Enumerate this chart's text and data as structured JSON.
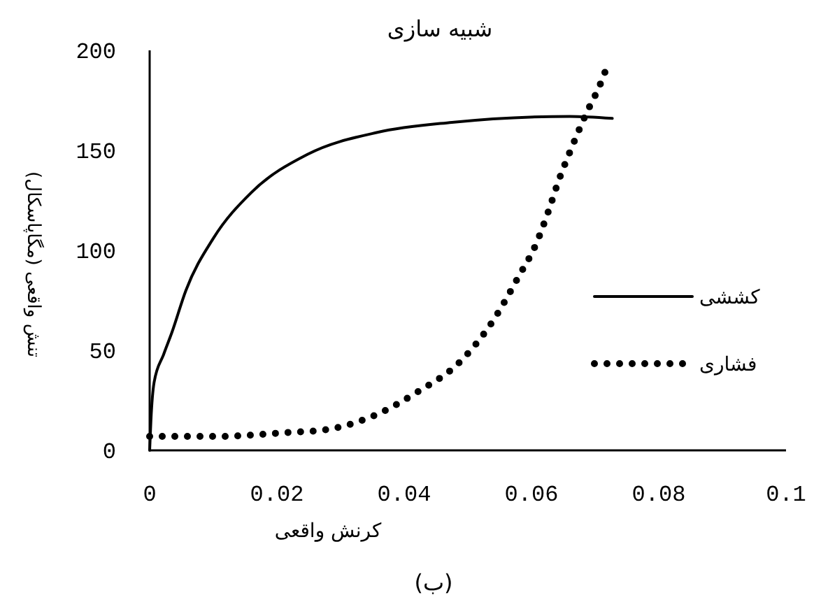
{
  "chart_data": {
    "type": "line",
    "title": "شبیه سازی",
    "xlabel": "کرنش واقعی",
    "ylabel": "تنش واقعی (مگاپاسکال)",
    "annotations": [
      "(ب)"
    ],
    "xlim": [
      0,
      0.1
    ],
    "xticks": [
      0,
      0.02,
      0.04,
      0.06,
      0.08,
      {
        "value": 0.1,
        "label": "0.1"
      }
    ],
    "ylim": [
      0,
      200
    ],
    "yticks": [
      0,
      50,
      100,
      150,
      200
    ],
    "grid": false,
    "legend": "right",
    "marker": "none",
    "series": [
      {
        "name": "کششی",
        "color": "#000000",
        "line_style": "solid",
        "x": [
          0,
          0.0002,
          0.0007,
          0.0022,
          0.0035,
          0.0057,
          0.01,
          0.016,
          0.0248,
          0.0358,
          0.0475,
          0.066,
          0.0727
        ],
        "values": [
          0,
          15,
          34,
          48,
          59,
          80,
          106,
          129,
          148,
          159,
          164,
          167,
          166
        ]
      },
      {
        "name": "فشاری",
        "color": "#000000",
        "line_style": "dotted",
        "x": [
          0,
          0.011,
          0.022,
          0.027,
          0.035,
          0.042,
          0.049,
          0.054,
          0.058,
          0.0607,
          0.0626,
          0.0644,
          0.0664,
          0.0684,
          0.0708,
          0.0719
        ],
        "values": [
          7,
          7,
          9,
          10,
          17,
          29,
          45,
          65,
          87,
          103,
          119,
          136,
          152,
          167,
          183,
          192
        ]
      }
    ]
  }
}
